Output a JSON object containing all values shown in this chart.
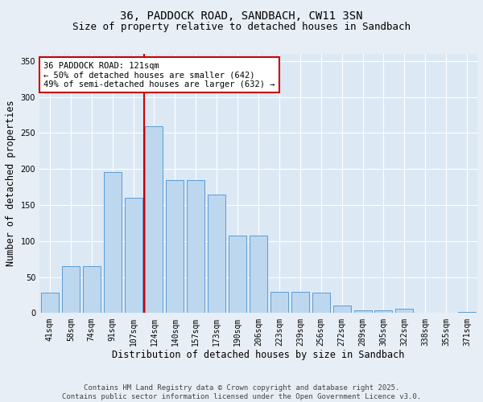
{
  "title": "36, PADDOCK ROAD, SANDBACH, CW11 3SN",
  "subtitle": "Size of property relative to detached houses in Sandbach",
  "xlabel": "Distribution of detached houses by size in Sandbach",
  "ylabel": "Number of detached properties",
  "categories": [
    "41sqm",
    "58sqm",
    "74sqm",
    "91sqm",
    "107sqm",
    "124sqm",
    "140sqm",
    "157sqm",
    "173sqm",
    "190sqm",
    "206sqm",
    "223sqm",
    "239sqm",
    "256sqm",
    "272sqm",
    "289sqm",
    "305sqm",
    "322sqm",
    "338sqm",
    "355sqm",
    "371sqm"
  ],
  "values": [
    28,
    65,
    65,
    196,
    160,
    260,
    185,
    185,
    165,
    108,
    108,
    30,
    30,
    28,
    10,
    4,
    4,
    6,
    0,
    0,
    2
  ],
  "bar_color": "#bdd7ee",
  "bar_edge_color": "#5b9bd5",
  "vline_index": 5,
  "vline_color": "#cc0000",
  "annotation_text": "36 PADDOCK ROAD: 121sqm\n← 50% of detached houses are smaller (642)\n49% of semi-detached houses are larger (632) →",
  "annotation_box_color": "#ffffff",
  "annotation_box_edge": "#cc0000",
  "ylim": [
    0,
    360
  ],
  "yticks": [
    0,
    50,
    100,
    150,
    200,
    250,
    300,
    350
  ],
  "plot_bg_color": "#dce9f5",
  "grid_color": "#ffffff",
  "fig_bg_color": "#e8eef5",
  "footer_text": "Contains HM Land Registry data © Crown copyright and database right 2025.\nContains public sector information licensed under the Open Government Licence v3.0.",
  "title_fontsize": 10,
  "subtitle_fontsize": 9,
  "xlabel_fontsize": 8.5,
  "ylabel_fontsize": 8.5,
  "tick_fontsize": 7,
  "annotation_fontsize": 7.5,
  "footer_fontsize": 6.5
}
